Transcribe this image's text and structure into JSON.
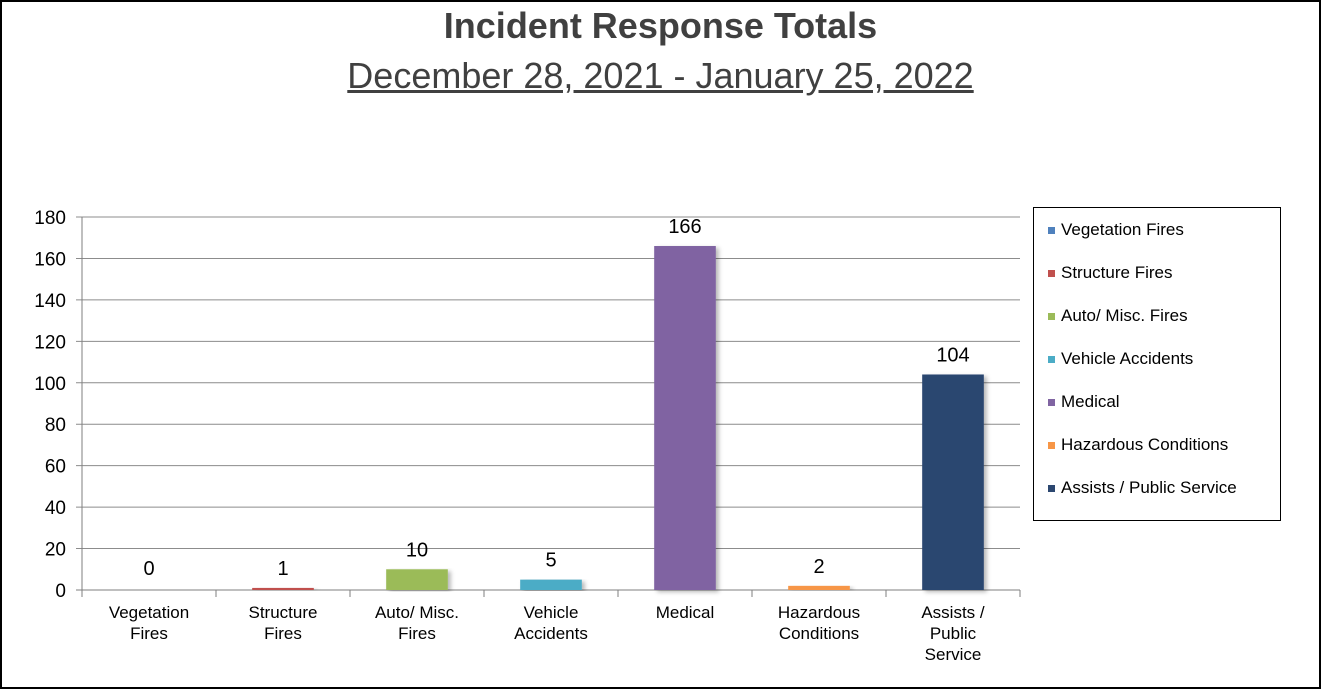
{
  "chart_data": {
    "type": "bar",
    "title": "Incident Response Totals",
    "subtitle": "December 28, 2021 - January 25, 2022",
    "categories": [
      [
        "Vegetation",
        "Fires"
      ],
      [
        "Structure",
        "Fires"
      ],
      [
        "Auto/ Misc.",
        "Fires"
      ],
      [
        "Vehicle",
        "Accidents"
      ],
      [
        "Medical"
      ],
      [
        "Hazardous",
        "Conditions"
      ],
      [
        "Assists /",
        "Public",
        "Service"
      ]
    ],
    "values": [
      0,
      1,
      10,
      5,
      166,
      2,
      104
    ],
    "colors": [
      "#4f81bd",
      "#c0504d",
      "#9bbb59",
      "#4bacc6",
      "#8064a2",
      "#f79646",
      "#2c4770"
    ],
    "ylim": [
      0,
      180
    ],
    "yticks": [
      0,
      20,
      40,
      60,
      80,
      100,
      120,
      140,
      160,
      180
    ],
    "grid": true,
    "legend_position": "right",
    "legend": [
      "Vegetation Fires",
      "Structure Fires",
      "Auto/ Misc. Fires",
      "Vehicle Accidents",
      "Medical",
      "Hazardous Conditions",
      "Assists / Public Service"
    ]
  }
}
